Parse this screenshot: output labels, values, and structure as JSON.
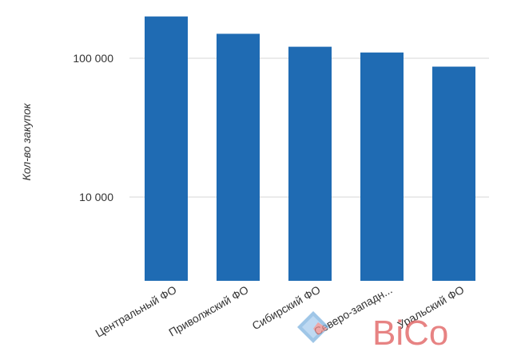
{
  "chart_data": {
    "type": "bar",
    "ylabel": "Кол-во закупок",
    "xlabel": "",
    "scale": "log",
    "yticks": [
      {
        "value": 10000,
        "label": "10 000"
      },
      {
        "value": 100000,
        "label": "100 000"
      }
    ],
    "categories": [
      "Центральный ФО",
      "Приволжский ФО",
      "Сибирский ФО",
      "Северо-западн...",
      "Уральский ФО"
    ],
    "values": [
      200000,
      150000,
      121000,
      110000,
      87000
    ],
    "grid": true,
    "legend": "none",
    "colors": {
      "bar": "#1f6bb3",
      "grid": "#d7d7d7",
      "text": "#333333"
    }
  },
  "watermark": {
    "text": "BiCo",
    "color": "#e05a5a"
  }
}
